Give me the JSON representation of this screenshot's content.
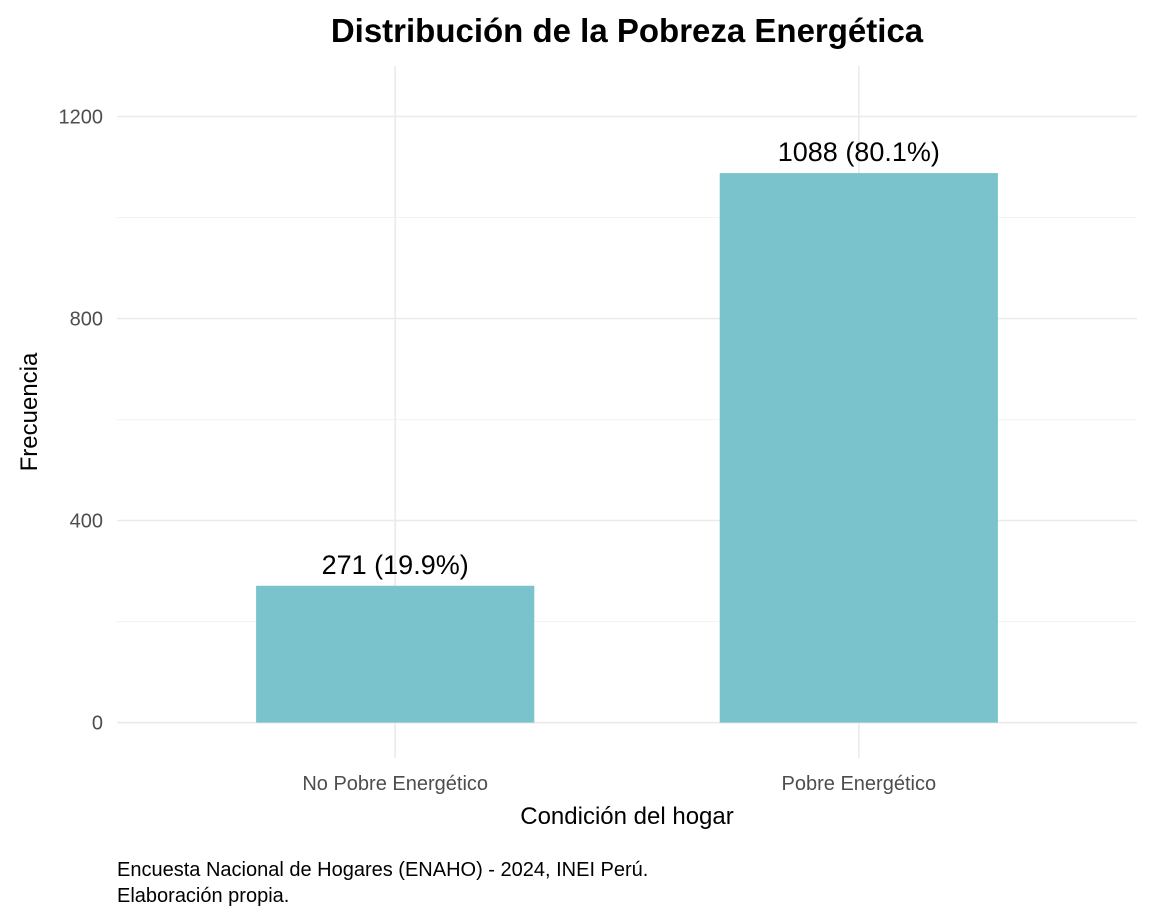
{
  "chart_data": {
    "type": "bar",
    "title": "Distribución de la Pobreza Energética",
    "xlabel": "Condición del hogar",
    "ylabel": "Frecuencia",
    "categories": [
      "No Pobre Energético",
      "Pobre Energético"
    ],
    "values": [
      271,
      1088
    ],
    "data_labels": [
      "271 (19.9%)",
      "1088 (80.1%)"
    ],
    "ylim": [
      -70,
      1300
    ],
    "yticks": [
      0,
      400,
      800,
      1200
    ],
    "ytick_labels": [
      "0",
      "400",
      "800",
      "1200"
    ],
    "grid": true,
    "legend": "none",
    "bar_color": "#7bc3cc",
    "caption_lines": [
      "Encuesta Nacional de Hogares (ENAHO) - 2024, INEI Perú.",
      "Elaboración propia."
    ]
  }
}
